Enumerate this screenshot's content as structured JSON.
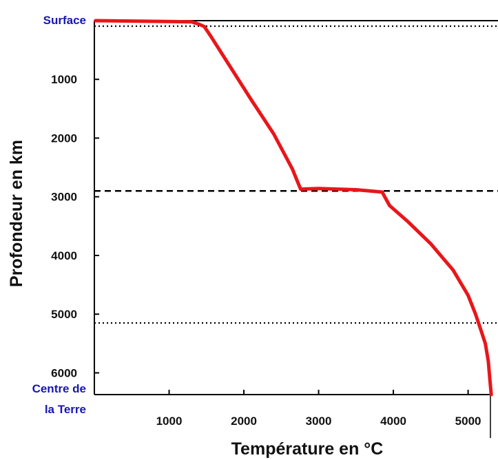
{
  "colors": {
    "curve": "#e8161a",
    "annotation": "#1616b0",
    "axis": "#000000"
  },
  "chart_data": {
    "type": "line",
    "title": "",
    "xlabel": "Température en °C",
    "ylabel": "Profondeur en km",
    "xlim": [
      0,
      5400
    ],
    "ylim": [
      0,
      6370
    ],
    "y_inverted": true,
    "x_ticks": [
      "1000",
      "2000",
      "3000",
      "4000",
      "5000"
    ],
    "x_tick_values": [
      1000,
      2000,
      3000,
      4000,
      5000
    ],
    "y_ticks": [
      "1000",
      "2000",
      "3000",
      "4000",
      "5000",
      "6000"
    ],
    "y_tick_values": [
      1000,
      2000,
      3000,
      4000,
      5000,
      6000
    ],
    "annotations": {
      "surface": "Surface",
      "centre_line1": "Centre de",
      "centre_line2": "la Terre"
    },
    "reference_lines": [
      {
        "name": "surface-boundary",
        "style": "dotted",
        "depth": 20
      },
      {
        "name": "mantle-core-boundary",
        "style": "dashed",
        "depth": 2900
      },
      {
        "name": "inner-core-boundary",
        "style": "dotted",
        "depth": 5150
      }
    ],
    "series": [
      {
        "name": "Température",
        "x": [
          15,
          1000,
          1300,
          1400,
          1470,
          1550,
          1800,
          2100,
          2400,
          2650,
          2720,
          2760,
          3000,
          3500,
          3850,
          3950,
          4200,
          4500,
          4800,
          5000,
          5100,
          5150,
          5230,
          5270,
          5290,
          5310
        ],
        "y": [
          0,
          15,
          20,
          60,
          100,
          250,
          750,
          1350,
          1930,
          2530,
          2750,
          2870,
          2860,
          2880,
          2920,
          3150,
          3430,
          3800,
          4250,
          4680,
          5000,
          5190,
          5500,
          5800,
          6100,
          6370
        ]
      }
    ]
  }
}
